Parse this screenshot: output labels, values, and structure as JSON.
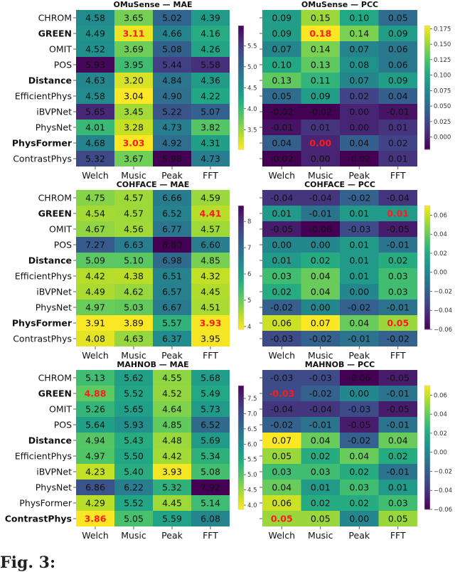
{
  "colormap": "viridis",
  "caption": "Fig. 3:",
  "chart_data": [
    {
      "type": "heatmap",
      "title": "OMuSense — MAE",
      "side": "left",
      "reverse_cmap": true,
      "rows": [
        "CHROM",
        "GREEN",
        "OMIT",
        "POS",
        "Distance",
        "EfficientPhys",
        "iBVPNet",
        "PhysNet",
        "PhysFormer",
        "ContrastPhys"
      ],
      "bold_rows": [
        "GREEN",
        "Distance",
        "PhysFormer"
      ],
      "cols": [
        "Welch",
        "Music",
        "Peak",
        "FFT"
      ],
      "values": [
        [
          4.58,
          3.65,
          5.02,
          4.39
        ],
        [
          4.49,
          3.11,
          4.66,
          4.16
        ],
        [
          4.52,
          3.69,
          5.08,
          4.26
        ],
        [
          5.93,
          3.95,
          5.44,
          5.58
        ],
        [
          4.63,
          3.2,
          4.84,
          4.36
        ],
        [
          4.58,
          3.04,
          4.9,
          4.22
        ],
        [
          5.65,
          3.45,
          5.22,
          5.07
        ],
        [
          4.01,
          3.28,
          4.73,
          3.82
        ],
        [
          4.68,
          3.03,
          4.92,
          4.31
        ],
        [
          5.32,
          3.67,
          5.98,
          4.73
        ]
      ],
      "highlight": [
        [
          1,
          1
        ],
        [
          8,
          1
        ]
      ],
      "colorbar": {
        "range": [
          3.03,
          5.98
        ],
        "ticks": [
          "3.5",
          "4.0",
          "4.5",
          "5.0",
          "5.5"
        ]
      }
    },
    {
      "type": "heatmap",
      "title": "OMuSense — PCC",
      "side": "right",
      "reverse_cmap": false,
      "rows": [],
      "bold_rows": [],
      "cols": [
        "Welch",
        "Music",
        "Peak",
        "FFT"
      ],
      "values": [
        [
          0.09,
          0.15,
          0.1,
          0.05
        ],
        [
          0.09,
          0.18,
          0.14,
          0.09
        ],
        [
          0.07,
          0.14,
          0.07,
          0.06
        ],
        [
          0.1,
          0.13,
          0.08,
          0.06
        ],
        [
          0.13,
          0.11,
          0.07,
          0.09
        ],
        [
          0.05,
          0.09,
          0.02,
          0.04
        ],
        [
          -0.02,
          -0.02,
          0.0,
          -0.01
        ],
        [
          -0.01,
          0.01,
          0.0,
          0.01
        ],
        [
          0.04,
          0.0,
          0.04,
          0.02
        ],
        [
          -0.02,
          0.0,
          -0.02,
          0.01
        ]
      ],
      "highlight": [
        [
          1,
          1
        ],
        [
          8,
          1
        ]
      ],
      "colorbar": {
        "range": [
          -0.02,
          0.18
        ],
        "ticks": [
          "0.000",
          "0.025",
          "0.050",
          "0.075",
          "0.100",
          "0.125",
          "0.150",
          "0.175"
        ]
      }
    },
    {
      "type": "heatmap",
      "title": "COHFACE — MAE",
      "side": "left",
      "reverse_cmap": true,
      "rows": [
        "CHROM",
        "GREEN",
        "OMIT",
        "POS",
        "Distance",
        "EfficientPhys",
        "iBVPNet",
        "PhysNet",
        "PhysFormer",
        "ContrastPhys"
      ],
      "bold_rows": [
        "GREEN",
        "Distance",
        "PhysFormer"
      ],
      "cols": [
        "Welch",
        "Music",
        "Peak",
        "FFT"
      ],
      "values": [
        [
          4.75,
          4.57,
          6.66,
          4.59
        ],
        [
          4.54,
          4.57,
          6.52,
          4.41
        ],
        [
          4.67,
          4.56,
          6.77,
          4.57
        ],
        [
          7.27,
          6.63,
          8.6,
          6.6
        ],
        [
          5.09,
          5.1,
          6.98,
          4.85
        ],
        [
          4.42,
          4.38,
          6.51,
          4.32
        ],
        [
          4.49,
          4.62,
          6.57,
          4.45
        ],
        [
          4.97,
          5.03,
          6.67,
          4.51
        ],
        [
          3.91,
          3.89,
          5.57,
          3.93
        ],
        [
          4.08,
          4.63,
          6.37,
          3.95
        ]
      ],
      "highlight": [
        [
          1,
          3
        ],
        [
          8,
          3
        ]
      ],
      "colorbar": {
        "range": [
          3.89,
          8.6
        ],
        "ticks": [
          "4",
          "5",
          "6",
          "7",
          "8"
        ]
      }
    },
    {
      "type": "heatmap",
      "title": "COHFACE — PCC",
      "side": "right",
      "reverse_cmap": false,
      "rows": [],
      "bold_rows": [],
      "cols": [
        "Welch",
        "Music",
        "Peak",
        "FFT"
      ],
      "values": [
        [
          -0.04,
          -0.04,
          -0.02,
          -0.04
        ],
        [
          0.01,
          -0.01,
          0.01,
          0.01
        ],
        [
          -0.05,
          -0.06,
          -0.03,
          -0.05
        ],
        [
          0.0,
          0.0,
          0.01,
          -0.01
        ],
        [
          0.01,
          0.02,
          0.01,
          0.02
        ],
        [
          0.03,
          0.04,
          0.01,
          0.03
        ],
        [
          0.02,
          0.04,
          0.0,
          0.03
        ],
        [
          -0.02,
          0.0,
          -0.02,
          -0.01
        ],
        [
          0.06,
          0.07,
          0.04,
          0.05
        ],
        [
          -0.03,
          -0.02,
          -0.01,
          -0.02
        ]
      ],
      "highlight": [
        [
          1,
          3
        ],
        [
          8,
          3
        ]
      ],
      "colorbar": {
        "range": [
          -0.06,
          0.07
        ],
        "ticks": [
          "−0.06",
          "−0.04",
          "−0.02",
          "0.00",
          "0.02",
          "0.04",
          "0.06"
        ]
      }
    },
    {
      "type": "heatmap",
      "title": "MAHNOB — MAE",
      "side": "left",
      "reverse_cmap": true,
      "rows": [
        "CHROM",
        "GREEN",
        "OMIT",
        "POS",
        "Distance",
        "EfficientPhys",
        "iBVPNet",
        "PhysNet",
        "PhysFormer",
        "ContrastPhys"
      ],
      "bold_rows": [
        "GREEN",
        "Distance",
        "ContrastPhys"
      ],
      "cols": [
        "Welch",
        "Music",
        "Peak",
        "FFT"
      ],
      "values": [
        [
          5.13,
          5.62,
          4.55,
          5.68
        ],
        [
          4.88,
          5.52,
          4.52,
          5.49
        ],
        [
          5.26,
          5.65,
          4.64,
          5.73
        ],
        [
          5.64,
          5.93,
          4.85,
          6.52
        ],
        [
          4.94,
          5.43,
          4.48,
          5.69
        ],
        [
          4.97,
          5.5,
          4.42,
          5.34
        ],
        [
          4.23,
          5.4,
          3.93,
          5.08
        ],
        [
          6.86,
          6.22,
          5.32,
          7.92
        ],
        [
          4.29,
          5.52,
          4.45,
          5.14
        ],
        [
          3.86,
          5.05,
          5.59,
          6.08
        ]
      ],
      "highlight": [
        [
          1,
          0
        ],
        [
          9,
          0
        ]
      ],
      "colorbar": {
        "range": [
          3.86,
          7.92
        ],
        "ticks": [
          "4.0",
          "4.5",
          "5.0",
          "5.5",
          "6.0",
          "6.5",
          "7.0",
          "7.5"
        ]
      }
    },
    {
      "type": "heatmap",
      "title": "MAHNOB — PCC",
      "side": "right",
      "reverse_cmap": false,
      "rows": [],
      "bold_rows": [],
      "cols": [
        "Welch",
        "Music",
        "Peak",
        "FFT"
      ],
      "values": [
        [
          -0.03,
          -0.03,
          -0.06,
          -0.05
        ],
        [
          -0.03,
          -0.02,
          0.0,
          -0.01
        ],
        [
          -0.04,
          -0.04,
          -0.03,
          -0.05
        ],
        [
          -0.02,
          -0.01,
          -0.05,
          -0.01
        ],
        [
          0.07,
          0.04,
          -0.02,
          0.04
        ],
        [
          0.05,
          0.02,
          0.04,
          0.02
        ],
        [
          0.03,
          0.03,
          0.02,
          -0.01
        ],
        [
          0.04,
          0.01,
          0.03,
          0.01
        ],
        [
          0.06,
          0.02,
          0.02,
          0.03
        ],
        [
          0.05,
          0.05,
          0.0,
          0.05
        ]
      ],
      "highlight": [
        [
          1,
          0
        ],
        [
          9,
          0
        ]
      ],
      "colorbar": {
        "range": [
          -0.06,
          0.07
        ],
        "ticks": [
          "−0.06",
          "−0.04",
          "−0.02",
          "0.00",
          "0.02",
          "0.04",
          "0.06"
        ]
      }
    }
  ]
}
